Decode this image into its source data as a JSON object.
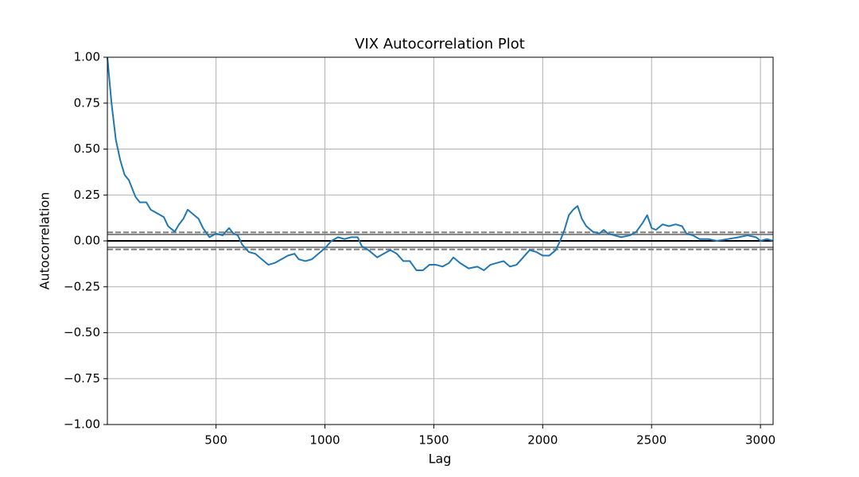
{
  "chart_data": {
    "type": "line",
    "title": "VIX Autocorrelation Plot",
    "xlabel": "Lag",
    "ylabel": "Autocorrelation",
    "x": [
      1,
      20,
      40,
      60,
      80,
      100,
      130,
      150,
      180,
      200,
      230,
      260,
      280,
      310,
      330,
      350,
      370,
      390,
      420,
      440,
      470,
      500,
      530,
      560,
      580,
      600,
      620,
      650,
      680,
      710,
      740,
      770,
      800,
      830,
      860,
      880,
      910,
      940,
      970,
      1000,
      1030,
      1060,
      1090,
      1120,
      1150,
      1170,
      1200,
      1240,
      1270,
      1300,
      1330,
      1360,
      1390,
      1420,
      1450,
      1480,
      1510,
      1540,
      1570,
      1590,
      1620,
      1660,
      1700,
      1730,
      1760,
      1790,
      1820,
      1850,
      1880,
      1910,
      1940,
      1970,
      2000,
      2030,
      2060,
      2080,
      2100,
      2120,
      2140,
      2160,
      2180,
      2200,
      2230,
      2260,
      2280,
      2300,
      2330,
      2360,
      2400,
      2430,
      2460,
      2480,
      2500,
      2520,
      2550,
      2580,
      2610,
      2640,
      2660,
      2690,
      2720,
      2760,
      2800,
      2850,
      2900,
      2940,
      2980,
      3000,
      3030,
      3058
    ],
    "series": [
      {
        "name": "autocorrelation",
        "color": "#1f77b4",
        "values": [
          1.0,
          0.75,
          0.55,
          0.44,
          0.36,
          0.33,
          0.24,
          0.21,
          0.21,
          0.17,
          0.15,
          0.13,
          0.08,
          0.05,
          0.09,
          0.12,
          0.17,
          0.15,
          0.12,
          0.07,
          0.02,
          0.04,
          0.03,
          0.07,
          0.04,
          0.03,
          -0.02,
          -0.06,
          -0.07,
          -0.1,
          -0.13,
          -0.12,
          -0.1,
          -0.08,
          -0.07,
          -0.1,
          -0.11,
          -0.1,
          -0.07,
          -0.04,
          0.0,
          0.02,
          0.01,
          0.02,
          0.02,
          -0.03,
          -0.05,
          -0.09,
          -0.07,
          -0.05,
          -0.07,
          -0.11,
          -0.11,
          -0.16,
          -0.16,
          -0.13,
          -0.13,
          -0.14,
          -0.12,
          -0.09,
          -0.12,
          -0.15,
          -0.14,
          -0.16,
          -0.13,
          -0.12,
          -0.11,
          -0.14,
          -0.13,
          -0.09,
          -0.05,
          -0.06,
          -0.08,
          -0.08,
          -0.05,
          0.0,
          0.06,
          0.14,
          0.17,
          0.19,
          0.12,
          0.08,
          0.05,
          0.04,
          0.06,
          0.04,
          0.03,
          0.02,
          0.03,
          0.05,
          0.1,
          0.14,
          0.07,
          0.06,
          0.09,
          0.08,
          0.09,
          0.08,
          0.04,
          0.03,
          0.01,
          0.01,
          0.0,
          0.01,
          0.02,
          0.03,
          0.02,
          0.0,
          0.01,
          0.0
        ]
      }
    ],
    "reference_lines": [
      {
        "value": 0.0354,
        "color": "grey",
        "style": "solid"
      },
      {
        "value": 0.0466,
        "color": "grey",
        "style": "dashed"
      },
      {
        "value": 0,
        "color": "black",
        "style": "solid"
      },
      {
        "value": -0.0354,
        "color": "grey",
        "style": "solid"
      },
      {
        "value": -0.0466,
        "color": "grey",
        "style": "dashed"
      }
    ],
    "xlim": [
      1,
      3058
    ],
    "ylim": [
      -1,
      1
    ],
    "xticks": [
      500,
      1000,
      1500,
      2000,
      2500,
      3000
    ],
    "yticks": [
      {
        "value": -1,
        "label": "−1.00"
      },
      {
        "value": -0.75,
        "label": "−0.75"
      },
      {
        "value": -0.5,
        "label": "−0.50"
      },
      {
        "value": -0.25,
        "label": "−0.25"
      },
      {
        "value": 0,
        "label": "0.00"
      },
      {
        "value": 0.25,
        "label": "0.25"
      },
      {
        "value": 0.5,
        "label": "0.50"
      },
      {
        "value": 0.75,
        "label": "0.75"
      },
      {
        "value": 1,
        "label": "1.00"
      }
    ],
    "grid": true
  }
}
